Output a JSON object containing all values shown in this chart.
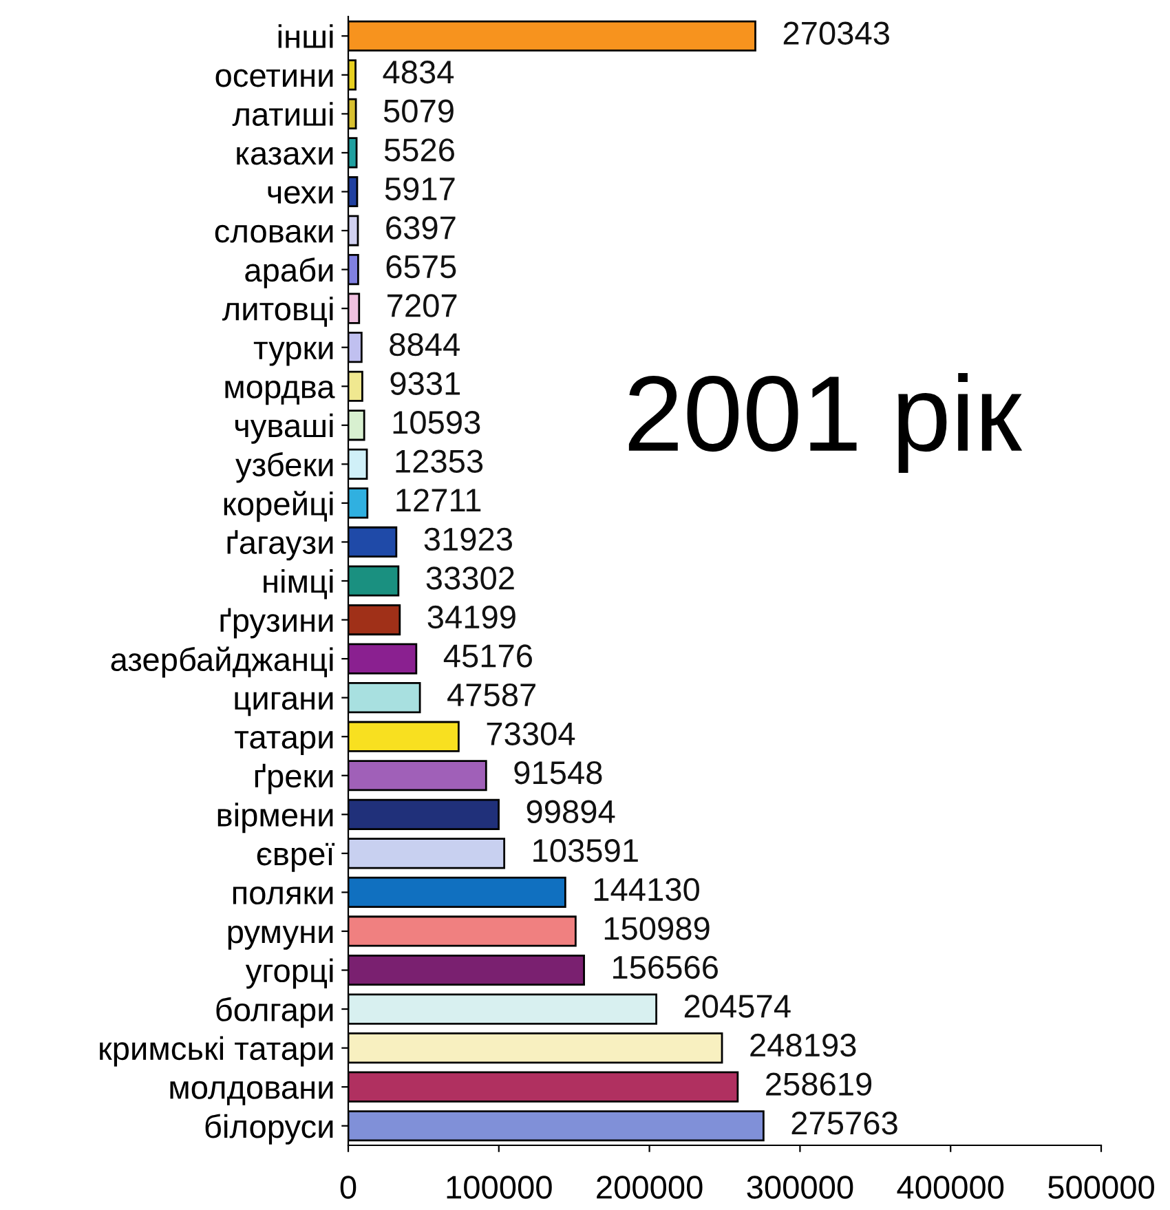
{
  "chart_data": {
    "type": "bar",
    "orientation": "horizontal",
    "categories": [
      "інші",
      "осетини",
      "латиші",
      "казахи",
      "чехи",
      "словаки",
      "араби",
      "литовці",
      "турки",
      "мордва",
      "чуваші",
      "узбеки",
      "корейці",
      "ґагаузи",
      "німці",
      "ґрузини",
      "азербайджанці",
      "цигани",
      "татари",
      "ґреки",
      "вірмени",
      "євреї",
      "поляки",
      "румуни",
      "угорці",
      "болгари",
      "кримські татари",
      "молдовани",
      "білоруси"
    ],
    "values": [
      270343,
      4834,
      5079,
      5526,
      5917,
      6397,
      6575,
      7207,
      8844,
      9331,
      10593,
      12353,
      12711,
      31923,
      33302,
      34199,
      45176,
      47587,
      73304,
      91548,
      99894,
      103591,
      144130,
      150989,
      156566,
      204574,
      248193,
      258619,
      275763
    ],
    "colors": [
      "#f7931e",
      "#e8d020",
      "#d8c030",
      "#20a0a0",
      "#2040a0",
      "#d0d0f0",
      "#8080e0",
      "#f0c0e0",
      "#c0c0f0",
      "#f0e890",
      "#d8f0d0",
      "#d0f0f8",
      "#30b0e0",
      "#1f4aa8",
      "#1a9080",
      "#a03018",
      "#8a2090",
      "#a8e0e0",
      "#f8e020",
      "#a060b8",
      "#20307a",
      "#c8d0f0",
      "#1070c0",
      "#f08080",
      "#7a2070",
      "#d8f0f0",
      "#f8f0c0",
      "#b03060",
      "#8090d8"
    ],
    "xlim": [
      0,
      500000
    ],
    "xticks": [
      0,
      100000,
      200000,
      300000,
      400000,
      500000
    ],
    "data_labels": true,
    "grid": false,
    "annotations": [
      "2001 рік"
    ]
  }
}
